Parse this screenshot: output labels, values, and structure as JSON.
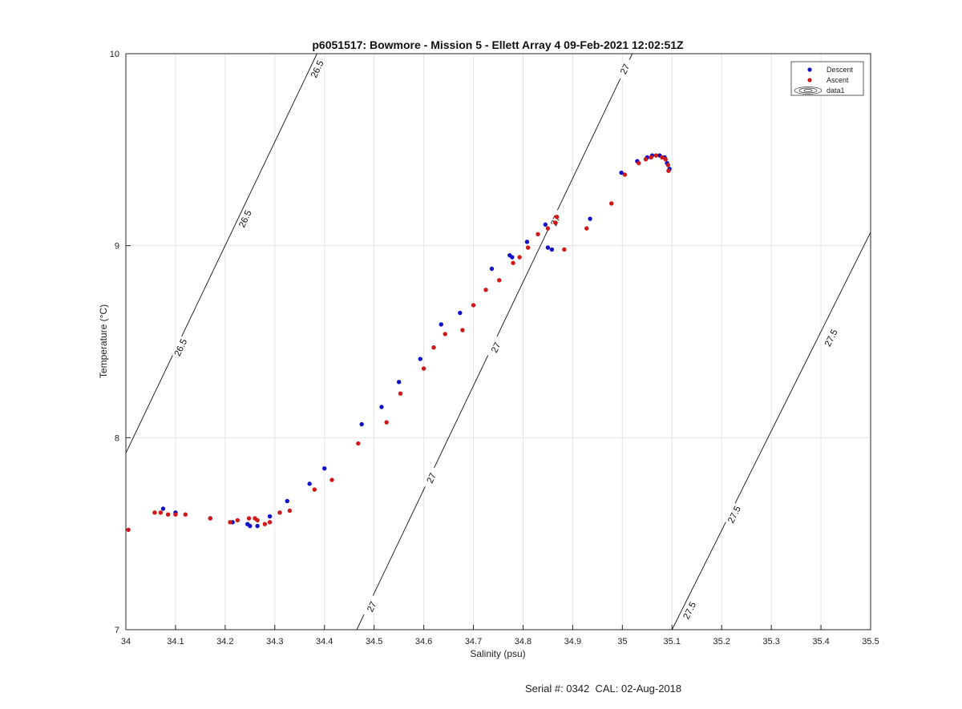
{
  "chart_data": {
    "type": "scatter",
    "title": "p6051517: Bowmore - Mission 5 - Ellett Array 4 09-Feb-2021 12:02:51Z",
    "xlabel": "Salinity (psu)",
    "ylabel": "Temperature (°C)",
    "xlim": [
      34,
      35.5
    ],
    "ylim": [
      7,
      10
    ],
    "xticks": [
      "34",
      "34.1",
      "34.2",
      "34.3",
      "34.4",
      "34.5",
      "34.6",
      "34.7",
      "34.8",
      "34.9",
      "35",
      "35.1",
      "35.2",
      "35.3",
      "35.4",
      "35.5"
    ],
    "yticks": [
      "7",
      "8",
      "9",
      "10"
    ],
    "grid": true,
    "legend_position": "top-right",
    "series": [
      {
        "name": "Descent",
        "color": "#1010c8",
        "points": [
          [
            34.075,
            7.63
          ],
          [
            34.1,
            7.61
          ],
          [
            34.17,
            7.58
          ],
          [
            34.215,
            7.56
          ],
          [
            34.245,
            7.55
          ],
          [
            34.25,
            7.54
          ],
          [
            34.265,
            7.54
          ],
          [
            34.29,
            7.59
          ],
          [
            34.325,
            7.67
          ],
          [
            34.37,
            7.76
          ],
          [
            34.4,
            7.84
          ],
          [
            34.475,
            8.07
          ],
          [
            34.515,
            8.16
          ],
          [
            34.55,
            8.29
          ],
          [
            34.593,
            8.41
          ],
          [
            34.635,
            8.59
          ],
          [
            34.673,
            8.65
          ],
          [
            34.737,
            8.88
          ],
          [
            34.773,
            8.95
          ],
          [
            34.778,
            8.94
          ],
          [
            34.808,
            9.02
          ],
          [
            34.845,
            9.11
          ],
          [
            34.85,
            8.99
          ],
          [
            34.858,
            8.98
          ],
          [
            34.935,
            9.14
          ],
          [
            34.998,
            9.38
          ],
          [
            35.03,
            9.44
          ],
          [
            35.05,
            9.46
          ],
          [
            35.06,
            9.47
          ],
          [
            35.075,
            9.47
          ],
          [
            35.085,
            9.46
          ],
          [
            35.09,
            9.43
          ],
          [
            35.095,
            9.4
          ]
        ]
      },
      {
        "name": "Ascent",
        "color": "#d01818",
        "points": [
          [
            34.005,
            7.52
          ],
          [
            34.058,
            7.61
          ],
          [
            34.07,
            7.61
          ],
          [
            34.085,
            7.6
          ],
          [
            34.1,
            7.6
          ],
          [
            34.12,
            7.6
          ],
          [
            34.17,
            7.58
          ],
          [
            34.21,
            7.56
          ],
          [
            34.225,
            7.57
          ],
          [
            34.248,
            7.58
          ],
          [
            34.26,
            7.58
          ],
          [
            34.265,
            7.57
          ],
          [
            34.28,
            7.55
          ],
          [
            34.29,
            7.56
          ],
          [
            34.31,
            7.61
          ],
          [
            34.33,
            7.62
          ],
          [
            34.38,
            7.73
          ],
          [
            34.415,
            7.78
          ],
          [
            34.468,
            7.97
          ],
          [
            34.525,
            8.08
          ],
          [
            34.553,
            8.23
          ],
          [
            34.6,
            8.36
          ],
          [
            34.62,
            8.47
          ],
          [
            34.643,
            8.54
          ],
          [
            34.678,
            8.56
          ],
          [
            34.7,
            8.69
          ],
          [
            34.725,
            8.77
          ],
          [
            34.752,
            8.82
          ],
          [
            34.78,
            8.91
          ],
          [
            34.793,
            8.94
          ],
          [
            34.81,
            8.99
          ],
          [
            34.83,
            9.06
          ],
          [
            34.85,
            9.09
          ],
          [
            34.865,
            9.12
          ],
          [
            34.868,
            9.15
          ],
          [
            34.883,
            8.98
          ],
          [
            34.928,
            9.09
          ],
          [
            34.978,
            9.22
          ],
          [
            35.005,
            9.37
          ],
          [
            35.033,
            9.43
          ],
          [
            35.047,
            9.45
          ],
          [
            35.058,
            9.46
          ],
          [
            35.068,
            9.47
          ],
          [
            35.08,
            9.46
          ],
          [
            35.087,
            9.45
          ],
          [
            35.092,
            9.42
          ],
          [
            35.093,
            9.39
          ]
        ]
      }
    ],
    "contours": [
      {
        "level": "26.5",
        "line": [
          [
            34,
            7.92
          ],
          [
            34.385,
            10.0
          ]
        ],
        "labels": [
          [
            34.385,
            9.92
          ],
          [
            34.24,
            9.14
          ],
          [
            34.11,
            8.47
          ]
        ]
      },
      {
        "level": "27",
        "line": [
          [
            34.465,
            7.0
          ],
          [
            35.02,
            10.0
          ]
        ],
        "labels": [
          [
            35.005,
            9.92
          ],
          [
            34.865,
            9.13
          ],
          [
            34.745,
            8.47
          ],
          [
            34.615,
            7.79
          ],
          [
            34.495,
            7.12
          ]
        ]
      },
      {
        "level": "27.5",
        "line": [
          [
            35.1,
            7.0
          ],
          [
            35.5,
            9.07
          ]
        ],
        "labels": [
          [
            35.42,
            8.52
          ],
          [
            35.225,
            7.6
          ],
          [
            35.135,
            7.1
          ]
        ]
      }
    ],
    "legend": [
      "Descent",
      "Ascent",
      "data1"
    ]
  },
  "footer": "Serial #: 0342  CAL: 02-Aug-2018"
}
